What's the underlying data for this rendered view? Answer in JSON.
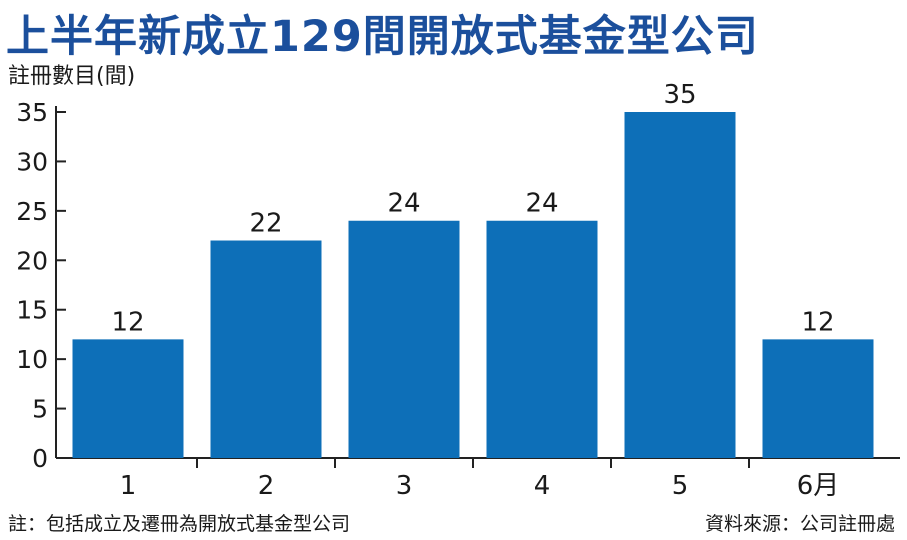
{
  "chart_data": {
    "type": "bar",
    "title": "上半年新成立129間開放式基金型公司",
    "ylabel": "註冊數目(間)",
    "xlabel": "",
    "categories": [
      "1",
      "2",
      "3",
      "4",
      "5",
      "6月"
    ],
    "values": [
      12,
      22,
      24,
      24,
      35,
      12
    ],
    "ylim": [
      0,
      35
    ],
    "yticks": [
      0,
      5,
      10,
      15,
      20,
      25,
      30,
      35
    ],
    "grid": false,
    "bar_color": "#0d6fb8",
    "title_color": "#1b4f9c"
  },
  "footer": {
    "note": "註：包括成立及遷冊為開放式基金型公司",
    "source": "資料來源：公司註冊處"
  }
}
